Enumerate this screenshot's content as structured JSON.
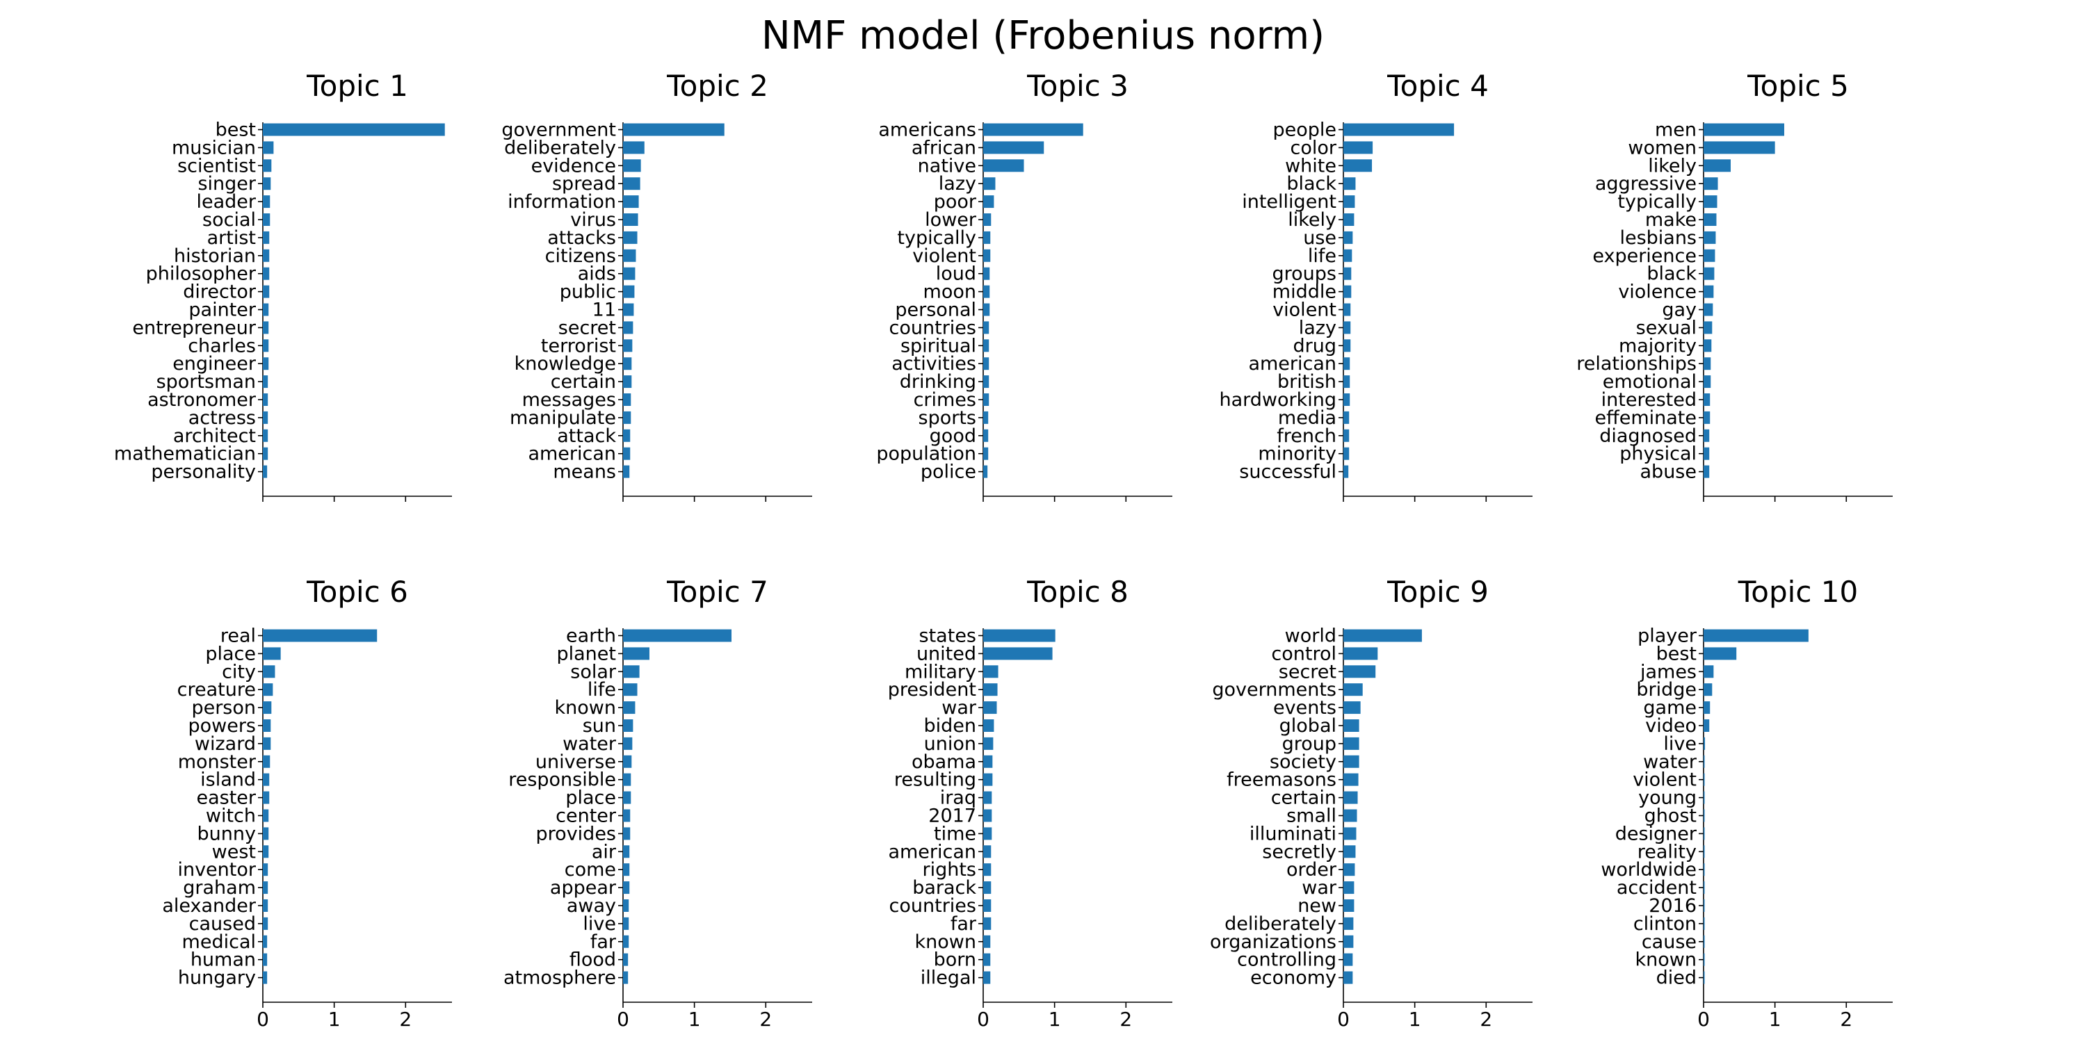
{
  "colors": {
    "bar": "#1f77b4",
    "axis": "#000000",
    "text": "#000000",
    "background": "#ffffff"
  },
  "chart_data": {
    "type": "bar",
    "orientation": "horizontal",
    "title": "NMF model (Frobenius norm)",
    "xlim": [
      0,
      2.65
    ],
    "xticks": [
      0,
      1,
      2
    ],
    "tick_labels": [
      "0",
      "1",
      "2"
    ],
    "panels": [
      {
        "title": "Topic 1",
        "categories": [
          "best",
          "musician",
          "scientist",
          "singer",
          "leader",
          "social",
          "artist",
          "historian",
          "philosopher",
          "director",
          "painter",
          "entrepreneur",
          "charles",
          "engineer",
          "sportsman",
          "astronomer",
          "actress",
          "architect",
          "mathematician",
          "personality"
        ],
        "values": [
          2.55,
          0.15,
          0.12,
          0.11,
          0.1,
          0.1,
          0.09,
          0.09,
          0.09,
          0.09,
          0.08,
          0.08,
          0.08,
          0.08,
          0.07,
          0.07,
          0.07,
          0.07,
          0.07,
          0.06
        ]
      },
      {
        "title": "Topic 2",
        "categories": [
          "government",
          "deliberately",
          "evidence",
          "spread",
          "information",
          "virus",
          "attacks",
          "citizens",
          "aids",
          "public",
          "11",
          "secret",
          "terrorist",
          "knowledge",
          "certain",
          "messages",
          "manipulate",
          "attack",
          "american",
          "means"
        ],
        "values": [
          1.42,
          0.3,
          0.25,
          0.24,
          0.22,
          0.21,
          0.2,
          0.18,
          0.17,
          0.16,
          0.15,
          0.14,
          0.13,
          0.12,
          0.12,
          0.11,
          0.11,
          0.1,
          0.1,
          0.09
        ]
      },
      {
        "title": "Topic 3",
        "categories": [
          "americans",
          "african",
          "native",
          "lazy",
          "poor",
          "lower",
          "typically",
          "violent",
          "loud",
          "moon",
          "personal",
          "countries",
          "spiritual",
          "activities",
          "drinking",
          "crimes",
          "sports",
          "good",
          "population",
          "police"
        ],
        "values": [
          1.4,
          0.85,
          0.57,
          0.17,
          0.15,
          0.11,
          0.1,
          0.1,
          0.09,
          0.09,
          0.09,
          0.08,
          0.08,
          0.08,
          0.08,
          0.08,
          0.07,
          0.07,
          0.07,
          0.06
        ]
      },
      {
        "title": "Topic 4",
        "categories": [
          "people",
          "color",
          "white",
          "black",
          "intelligent",
          "likely",
          "use",
          "life",
          "groups",
          "middle",
          "violent",
          "lazy",
          "drug",
          "american",
          "british",
          "hardworking",
          "media",
          "french",
          "minority",
          "successful"
        ],
        "values": [
          1.55,
          0.41,
          0.4,
          0.17,
          0.16,
          0.15,
          0.13,
          0.12,
          0.11,
          0.11,
          0.1,
          0.1,
          0.1,
          0.09,
          0.09,
          0.09,
          0.08,
          0.08,
          0.08,
          0.07
        ]
      },
      {
        "title": "Topic 5",
        "categories": [
          "men",
          "women",
          "likely",
          "aggressive",
          "typically",
          "make",
          "lesbians",
          "experience",
          "black",
          "violence",
          "gay",
          "sexual",
          "majority",
          "relationships",
          "emotional",
          "interested",
          "effeminate",
          "diagnosed",
          "physical",
          "abuse"
        ],
        "values": [
          1.13,
          1.0,
          0.38,
          0.2,
          0.19,
          0.18,
          0.17,
          0.16,
          0.15,
          0.14,
          0.13,
          0.12,
          0.11,
          0.1,
          0.1,
          0.09,
          0.09,
          0.08,
          0.08,
          0.08
        ]
      },
      {
        "title": "Topic 6",
        "categories": [
          "real",
          "place",
          "city",
          "creature",
          "person",
          "powers",
          "wizard",
          "monster",
          "island",
          "easter",
          "witch",
          "bunny",
          "west",
          "inventor",
          "graham",
          "alexander",
          "caused",
          "medical",
          "human",
          "hungary"
        ],
        "values": [
          1.6,
          0.25,
          0.17,
          0.14,
          0.12,
          0.11,
          0.11,
          0.1,
          0.09,
          0.09,
          0.08,
          0.08,
          0.08,
          0.07,
          0.07,
          0.07,
          0.07,
          0.06,
          0.06,
          0.06
        ]
      },
      {
        "title": "Topic 7",
        "categories": [
          "earth",
          "planet",
          "solar",
          "life",
          "known",
          "sun",
          "water",
          "universe",
          "responsible",
          "place",
          "center",
          "provides",
          "air",
          "come",
          "appear",
          "away",
          "live",
          "far",
          "flood",
          "atmosphere"
        ],
        "values": [
          1.52,
          0.37,
          0.23,
          0.2,
          0.17,
          0.14,
          0.13,
          0.12,
          0.11,
          0.11,
          0.1,
          0.1,
          0.09,
          0.09,
          0.09,
          0.08,
          0.08,
          0.08,
          0.07,
          0.07
        ]
      },
      {
        "title": "Topic 8",
        "categories": [
          "states",
          "united",
          "military",
          "president",
          "war",
          "biden",
          "union",
          "obama",
          "resulting",
          "iraq",
          "2017",
          "time",
          "american",
          "rights",
          "barack",
          "countries",
          "far",
          "known",
          "born",
          "illegal"
        ],
        "values": [
          1.01,
          0.97,
          0.21,
          0.2,
          0.19,
          0.15,
          0.14,
          0.13,
          0.13,
          0.12,
          0.12,
          0.12,
          0.11,
          0.11,
          0.11,
          0.11,
          0.11,
          0.1,
          0.1,
          0.1
        ]
      },
      {
        "title": "Topic 9",
        "categories": [
          "world",
          "control",
          "secret",
          "governments",
          "events",
          "global",
          "group",
          "society",
          "freemasons",
          "certain",
          "small",
          "illuminati",
          "secretly",
          "order",
          "war",
          "new",
          "deliberately",
          "organizations",
          "controlling",
          "economy"
        ],
        "values": [
          1.1,
          0.48,
          0.45,
          0.27,
          0.24,
          0.22,
          0.22,
          0.22,
          0.21,
          0.2,
          0.19,
          0.18,
          0.17,
          0.16,
          0.15,
          0.15,
          0.14,
          0.14,
          0.13,
          0.13
        ]
      },
      {
        "title": "Topic 10",
        "categories": [
          "player",
          "best",
          "james",
          "bridge",
          "game",
          "video",
          "live",
          "water",
          "violent",
          "young",
          "ghost",
          "designer",
          "reality",
          "worldwide",
          "accident",
          "2016",
          "clinton",
          "cause",
          "known",
          "died"
        ],
        "values": [
          1.47,
          0.46,
          0.14,
          0.12,
          0.09,
          0.08,
          0.02,
          0.01,
          0.01,
          0.01,
          0.01,
          0.01,
          0.01,
          0.01,
          0.01,
          0.01,
          0.01,
          0.01,
          0.01,
          0.01
        ]
      }
    ]
  }
}
